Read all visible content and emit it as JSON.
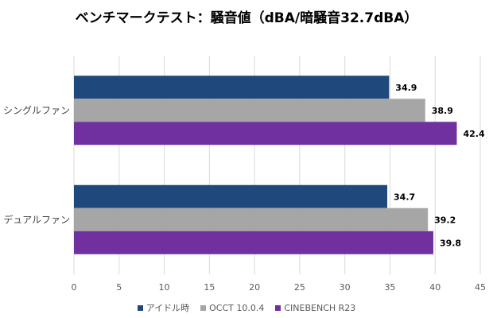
{
  "chart_data": {
    "type": "bar",
    "orientation": "horizontal",
    "title": "ベンチマークテスト：騒音値（dBA/暗騒音32.7dBA）",
    "categories": [
      "シングルファン",
      "デュアルファン"
    ],
    "series": [
      {
        "name": "アイドル時",
        "color": "#1f497d",
        "values": [
          34.9,
          34.7
        ]
      },
      {
        "name": "OCCT 10.0.4",
        "color": "#a6a6a6",
        "values": [
          38.9,
          39.2
        ]
      },
      {
        "name": "CINEBENCH R23",
        "color": "#7030a0",
        "values": [
          42.4,
          39.8
        ]
      }
    ],
    "xlim": [
      0,
      45
    ],
    "xticks": [
      0,
      5,
      10,
      15,
      20,
      25,
      30,
      35,
      40,
      45
    ],
    "xlabel": "",
    "ylabel": "",
    "grid": true,
    "legend_position": "bottom"
  }
}
